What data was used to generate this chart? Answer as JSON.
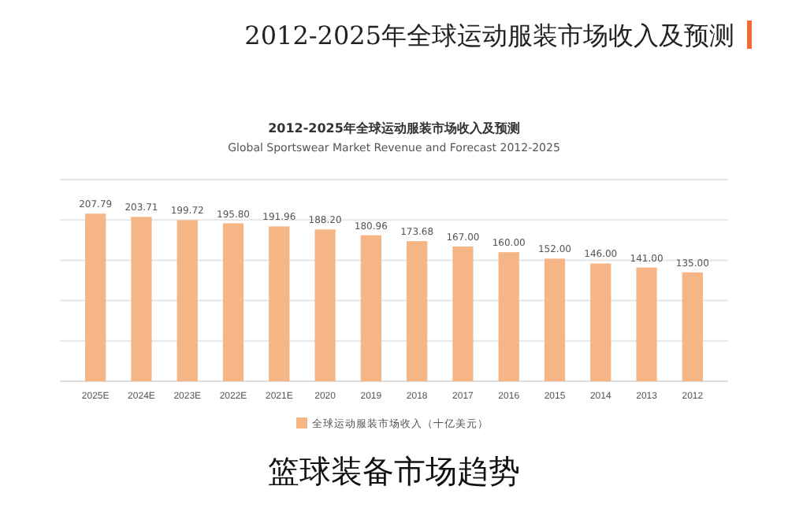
{
  "chart_data": {
    "type": "bar",
    "title": "2012-2025年全球运动服装市场收入及预测",
    "subtitle": "Global Sportswear Market Revenue and Forecast 2012-2025",
    "categories": [
      "2025E",
      "2024E",
      "2023E",
      "2022E",
      "2021E",
      "2020",
      "2019",
      "2018",
      "2017",
      "2016",
      "2015",
      "2014",
      "2013",
      "2012"
    ],
    "series": [
      {
        "name": "全球运动服装市场收入（十亿美元）",
        "color": "#f5b584",
        "values": [
          207.79,
          203.71,
          199.72,
          195.8,
          191.96,
          188.2,
          180.96,
          173.68,
          167.0,
          160.0,
          152.0,
          146.0,
          141.0,
          135.0
        ],
        "value_labels": [
          "207.79",
          "203.71",
          "199.72",
          "195.80",
          "191.96",
          "188.20",
          "180.96",
          "173.68",
          "167.00",
          "160.00",
          "152.00",
          "146.00",
          "141.00",
          "135.00"
        ]
      }
    ],
    "ylim": [
      0,
      250
    ],
    "yticks": [
      {
        "value": 0,
        "label": null
      },
      {
        "value": 50,
        "label": null
      },
      {
        "value": 100,
        "label": null
      },
      {
        "value": 150,
        "label": null
      },
      {
        "value": 200,
        "label": null
      },
      {
        "value": 250,
        "label": null
      }
    ],
    "grid": "y",
    "legend": "bottom",
    "annotations": [
      "2012-2025年全球运动服装市场收入及预测",
      "篮球装备市场趋势"
    ]
  }
}
